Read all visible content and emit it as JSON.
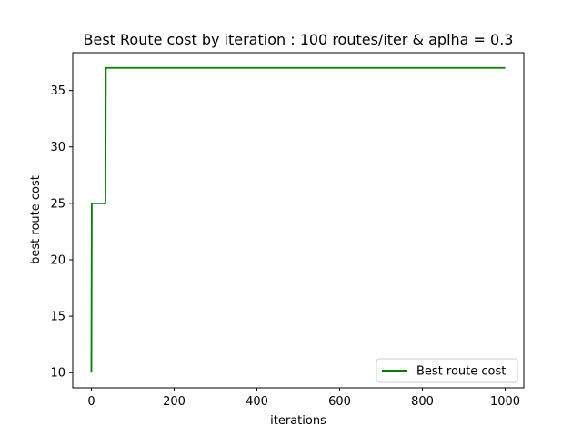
{
  "chart_data": {
    "type": "line",
    "title": "Best Route cost by iteration : 100 routes/iter & aplha = 0.3",
    "xlabel": "iterations",
    "ylabel": "best route cost",
    "xlim": [
      -45,
      1045
    ],
    "ylim": [
      8.65,
      38.35
    ],
    "xticks": [
      0,
      200,
      400,
      600,
      800,
      1000
    ],
    "yticks": [
      10,
      15,
      20,
      25,
      30,
      35
    ],
    "xtick_labels": [
      "0",
      "200",
      "400",
      "600",
      "800",
      "1000"
    ],
    "ytick_labels": [
      "10",
      "15",
      "20",
      "25",
      "30",
      "35"
    ],
    "grid": false,
    "legend_position": "lower-right",
    "series": [
      {
        "name": "Best route cost",
        "color": "#008000",
        "x": [
          0,
          1,
          34,
          35,
          1000
        ],
        "y": [
          10,
          25,
          25,
          37,
          37
        ]
      }
    ]
  }
}
